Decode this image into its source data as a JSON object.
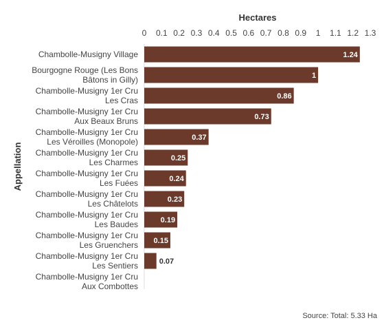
{
  "chart_data": {
    "type": "bar",
    "orientation": "horizontal",
    "xlabel": "Hectares",
    "ylabel": "Appellation",
    "xlim": [
      0,
      1.3
    ],
    "xticks": [
      "0",
      "0.1",
      "0.2",
      "0.3",
      "0.4",
      "0.5",
      "0.6",
      "0.7",
      "0.8",
      "0.9",
      "1",
      "1.1",
      "1.2",
      "1.3"
    ],
    "grid": false,
    "categories": [
      [
        "Chambolle-Musigny Village"
      ],
      [
        "Bourgogne Rouge (Les Bons",
        "Bâtons in Gilly)"
      ],
      [
        "Chambolle-Musigny 1er Cru",
        "Les Cras"
      ],
      [
        "Chambolle-Musigny 1er Cru",
        "Aux Beaux Bruns"
      ],
      [
        "Chambolle-Musigny 1er Cru",
        "Les Véroilles (Monopole)"
      ],
      [
        "Chambolle-Musigny 1er Cru",
        "Les Charmes"
      ],
      [
        "Chambolle-Musigny 1er Cru",
        "Les Fuées"
      ],
      [
        "Chambolle-Musigny 1er Cru",
        "Les Châtelots"
      ],
      [
        "Chambolle-Musigny 1er Cru",
        "Les Baudes"
      ],
      [
        "Chambolle-Musigny 1er Cru",
        "Les Gruenchers"
      ],
      [
        "Chambolle-Musigny 1er Cru",
        "Les Sentiers"
      ],
      [
        "Chambolle-Musigny 1er Cru",
        "Aux Combottes"
      ]
    ],
    "values": [
      1.24,
      1,
      0.86,
      0.73,
      0.37,
      0.25,
      0.24,
      0.23,
      0.19,
      0.15,
      0.07,
      null
    ],
    "value_labels": [
      "1.24",
      "1",
      "0.86",
      "0.73",
      "0.37",
      "0.25",
      "0.24",
      "0.23",
      "0.19",
      "0.15",
      "0.07",
      ""
    ],
    "bar_color": "#6b3a2a",
    "source": "Source: Total: 5.33 Ha"
  }
}
